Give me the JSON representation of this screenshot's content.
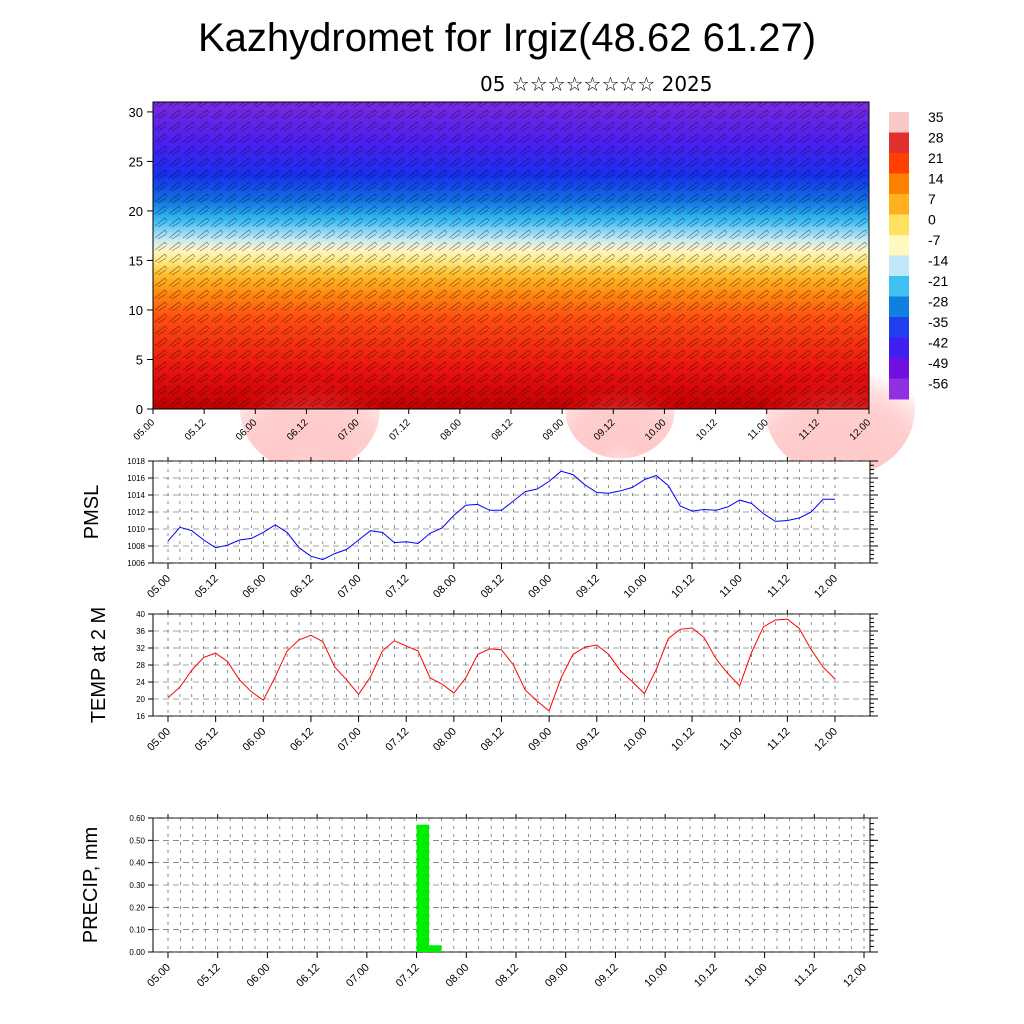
{
  "header": {
    "title": "Kazhydromet for Irgiz(48.62 61.27)",
    "subtitle": "05 ☆☆☆☆☆☆☆☆ 2025"
  },
  "colors": {
    "pmsl_line": "#0000ff",
    "temp_line": "#ff0000",
    "precip_bar": "#00ee00",
    "grid": "#666666"
  },
  "chart_data": [
    {
      "type": "heatmap",
      "name": "vertical-cross-section",
      "overlay": "wind barbs",
      "y_ticks": [
        "0",
        "5",
        "10",
        "15",
        "20",
        "25",
        "30"
      ],
      "ylim": [
        0,
        31
      ],
      "x_ticks": [
        "05.00",
        "05.12",
        "06.00",
        "06.12",
        "07.00",
        "07.12",
        "08.00",
        "08.12",
        "09.00",
        "09.12",
        "10.00",
        "10.12",
        "11.00",
        "11.12",
        "12.00"
      ],
      "colorbar_labels": [
        "35",
        "28",
        "21",
        "14",
        "7",
        "0",
        "-7",
        "-14",
        "-21",
        "-28",
        "-35",
        "-42",
        "-49",
        "-56"
      ],
      "colorbar_colors": [
        "#f8c8c8",
        "#e03030",
        "#ff4000",
        "#ff8000",
        "#ffb020",
        "#ffe060",
        "#fff8c0",
        "#c0e8f8",
        "#40c0f0",
        "#1080e0",
        "#2040f0",
        "#4020f0",
        "#7010e0",
        "#9030e0"
      ]
    },
    {
      "type": "line",
      "name": "PMSL",
      "ylabel": "PMSL",
      "ylim": [
        1006,
        1018
      ],
      "y_ticks": [
        "1006",
        "1008",
        "1010",
        "1012",
        "1014",
        "1016",
        "1018"
      ],
      "x_ticks": [
        "05.00",
        "05.12",
        "06.00",
        "06.12",
        "07.00",
        "07.12",
        "08.00",
        "08.12",
        "09.00",
        "09.12",
        "10.00",
        "10.12",
        "11.00",
        "11.12",
        "12.00"
      ],
      "x": [
        0,
        3,
        6,
        9,
        12,
        15,
        18,
        21,
        24,
        27,
        30,
        33,
        36,
        39,
        42,
        45,
        48,
        51,
        54,
        57,
        60,
        63,
        66,
        69,
        72,
        75,
        78,
        81,
        84,
        87,
        90,
        93,
        96,
        99,
        102,
        105,
        108,
        111,
        114,
        117,
        120,
        123,
        126,
        129,
        132,
        135,
        138,
        141,
        144,
        147,
        150,
        153,
        156,
        159,
        162,
        165,
        168
      ],
      "values": [
        1008.6,
        1010.2,
        1009.8,
        1008.7,
        1007.8,
        1008.1,
        1008.7,
        1008.9,
        1009.6,
        1010.5,
        1009.6,
        1007.8,
        1006.8,
        1006.4,
        1007.1,
        1007.6,
        1008.7,
        1009.8,
        1009.6,
        1008.4,
        1008.5,
        1008.3,
        1009.5,
        1010.1,
        1011.6,
        1012.8,
        1012.9,
        1012.2,
        1012.2,
        1013.3,
        1014.4,
        1014.7,
        1015.6,
        1016.8,
        1016.4,
        1015.2,
        1014.3,
        1014.2,
        1014.5,
        1014.9,
        1015.8,
        1016.3,
        1015.1,
        1012.7,
        1012.1,
        1012.3,
        1012.2,
        1012.6,
        1013.4,
        1013.0,
        1011.8,
        1010.9,
        1011.0,
        1011.3,
        1012.0,
        1013.5,
        1013.5
      ]
    },
    {
      "type": "line",
      "name": "TEMP at 2 M",
      "ylabel": "TEMP at 2 M",
      "ylim": [
        16,
        40
      ],
      "y_ticks": [
        "16",
        "20",
        "24",
        "28",
        "32",
        "36",
        "40"
      ],
      "x_ticks": [
        "05.00",
        "05.12",
        "06.00",
        "06.12",
        "07.00",
        "07.12",
        "08.00",
        "08.12",
        "09.00",
        "09.12",
        "10.00",
        "10.12",
        "11.00",
        "11.12",
        "12.00"
      ],
      "x": [
        0,
        3,
        6,
        9,
        12,
        15,
        18,
        21,
        24,
        27,
        30,
        33,
        36,
        39,
        42,
        45,
        48,
        51,
        54,
        57,
        60,
        63,
        66,
        69,
        72,
        75,
        78,
        81,
        84,
        87,
        90,
        93,
        96,
        99,
        102,
        105,
        108,
        111,
        114,
        117,
        120,
        123,
        126,
        129,
        132,
        135,
        138,
        141,
        144,
        147,
        150,
        153,
        156,
        159,
        162,
        165,
        168
      ],
      "values": [
        20.3,
        22.8,
        26.8,
        29.8,
        30.8,
        28.8,
        24.5,
        21.7,
        19.7,
        25.2,
        31.3,
        33.9,
        35.0,
        33.5,
        27.5,
        24.5,
        21.1,
        25.2,
        31.3,
        33.7,
        32.5,
        31.3,
        25.0,
        23.5,
        21.4,
        25.0,
        30.5,
        31.8,
        31.6,
        28.0,
        22.1,
        19.5,
        17.2,
        25.0,
        30.5,
        32.2,
        32.7,
        30.5,
        26.6,
        24.0,
        21.3,
        27.0,
        34.2,
        36.4,
        36.7,
        34.5,
        29.5,
        26.0,
        23.1,
        31.0,
        37.0,
        38.6,
        38.8,
        36.6,
        31.6,
        27.5,
        24.7
      ]
    },
    {
      "type": "bar",
      "name": "PRECIP",
      "ylabel": "PRECIP, mm",
      "ylim": [
        0,
        0.6
      ],
      "y_ticks": [
        "0.00",
        "0.10",
        "0.20",
        "0.30",
        "0.40",
        "0.50",
        "0.60"
      ],
      "x_ticks": [
        "05.00",
        "05.12",
        "06.00",
        "06.12",
        "07.00",
        "07.12",
        "08.00",
        "08.12",
        "09.00",
        "09.12",
        "10.00",
        "10.12",
        "11.00",
        "11.12",
        "12.00"
      ],
      "bars": [
        {
          "x_start": 60,
          "x_end": 63,
          "value": 0.57
        },
        {
          "x_start": 63,
          "x_end": 66,
          "value": 0.03
        }
      ]
    }
  ]
}
